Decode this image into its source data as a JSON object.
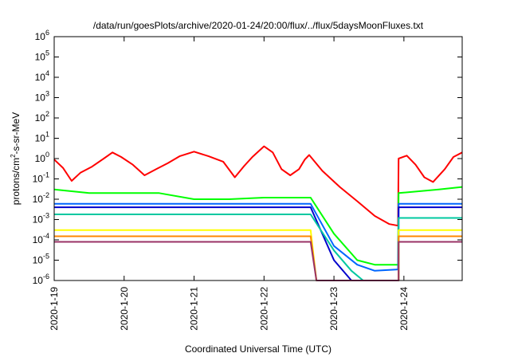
{
  "chart_data": {
    "type": "line",
    "title": "/data/run/goesPlots/archive/2020-01-24/20:00/flux/../flux/5daysMoonFluxes.txt",
    "xlabel": "Coordinated Universal Time (UTC)",
    "ylabel_parts": {
      "base": "protons/cm",
      "sup": "2",
      "rest": "-s-sr-MeV"
    },
    "y_scale": "log",
    "ylim": [
      1e-06,
      1000000.0
    ],
    "y_ticks": [
      {
        "base": "10",
        "exp": "-6",
        "value": 1e-06
      },
      {
        "base": "10",
        "exp": "-5",
        "value": 1e-05
      },
      {
        "base": "10",
        "exp": "-4",
        "value": 0.0001
      },
      {
        "base": "10",
        "exp": "-3",
        "value": 0.001
      },
      {
        "base": "10",
        "exp": "-2",
        "value": 0.01
      },
      {
        "base": "10",
        "exp": "-1",
        "value": 0.1
      },
      {
        "base": "10",
        "exp": "0",
        "value": 1
      },
      {
        "base": "10",
        "exp": "1",
        "value": 10
      },
      {
        "base": "10",
        "exp": "2",
        "value": 100
      },
      {
        "base": "10",
        "exp": "3",
        "value": 1000
      },
      {
        "base": "10",
        "exp": "4",
        "value": 10000
      },
      {
        "base": "10",
        "exp": "5",
        "value": 100000
      },
      {
        "base": "10",
        "exp": "6",
        "value": 1000000
      }
    ],
    "xlim": [
      "2020-01-19T00:00",
      "2020-01-24T20:00"
    ],
    "x_ticks": [
      "2020-1-19",
      "2020-1-20",
      "2020-1-21",
      "2020-1-22",
      "2020-1-23",
      "2020-1-24"
    ],
    "grid": false,
    "series": [
      {
        "color": "#ff0000",
        "values": [
          [
            "2020-01-19T00:00",
            0.9
          ],
          [
            "2020-01-19T03:00",
            0.35
          ],
          [
            "2020-01-19T06:00",
            0.08
          ],
          [
            "2020-01-19T09:00",
            0.2
          ],
          [
            "2020-01-19T13:00",
            0.4
          ],
          [
            "2020-01-19T17:00",
            1.0
          ],
          [
            "2020-01-19T20:00",
            2.0
          ],
          [
            "2020-01-19T23:00",
            1.2
          ],
          [
            "2020-01-20T03:00",
            0.5
          ],
          [
            "2020-01-20T07:00",
            0.15
          ],
          [
            "2020-01-20T11:00",
            0.3
          ],
          [
            "2020-01-20T15:00",
            0.6
          ],
          [
            "2020-01-20T19:00",
            1.3
          ],
          [
            "2020-01-21T00:00",
            2.2
          ],
          [
            "2020-01-21T05:00",
            1.3
          ],
          [
            "2020-01-21T10:00",
            0.7
          ],
          [
            "2020-01-21T14:00",
            0.12
          ],
          [
            "2020-01-21T17:00",
            0.4
          ],
          [
            "2020-01-21T20:00",
            1.2
          ],
          [
            "2020-01-22T00:00",
            4.0
          ],
          [
            "2020-01-22T03:00",
            2.0
          ],
          [
            "2020-01-22T06:00",
            0.3
          ],
          [
            "2020-01-22T09:00",
            0.15
          ],
          [
            "2020-01-22T12:00",
            0.3
          ],
          [
            "2020-01-22T14:00",
            0.9
          ],
          [
            "2020-01-22T15:30",
            1.5
          ],
          [
            "2020-01-22T20:00",
            0.25
          ],
          [
            "2020-01-23T02:00",
            0.04
          ],
          [
            "2020-01-23T08:00",
            0.008
          ],
          [
            "2020-01-23T14:00",
            0.0015
          ],
          [
            "2020-01-23T19:00",
            0.0006
          ],
          [
            "2020-01-23T22:00",
            0.0005
          ],
          [
            "2020-01-23T22:10",
            1.0
          ],
          [
            "2020-01-24T01:00",
            1.4
          ],
          [
            "2020-01-24T04:00",
            0.5
          ],
          [
            "2020-01-24T07:00",
            0.12
          ],
          [
            "2020-01-24T10:00",
            0.07
          ],
          [
            "2020-01-24T14:00",
            0.3
          ],
          [
            "2020-01-24T17:00",
            1.2
          ],
          [
            "2020-01-24T20:00",
            2.0
          ]
        ]
      },
      {
        "color": "#00ff00",
        "values": [
          [
            "2020-01-19T00:00",
            0.03
          ],
          [
            "2020-01-19T12:00",
            0.02
          ],
          [
            "2020-01-20T00:00",
            0.02
          ],
          [
            "2020-01-20T12:00",
            0.02
          ],
          [
            "2020-01-21T00:00",
            0.01
          ],
          [
            "2020-01-21T12:00",
            0.01
          ],
          [
            "2020-01-22T00:00",
            0.012
          ],
          [
            "2020-01-22T16:00",
            0.012
          ],
          [
            "2020-01-23T00:00",
            0.0002
          ],
          [
            "2020-01-23T08:00",
            1e-05
          ],
          [
            "2020-01-23T14:00",
            6e-06
          ],
          [
            "2020-01-23T22:00",
            6e-06
          ],
          [
            "2020-01-23T22:10",
            0.02
          ],
          [
            "2020-01-24T12:00",
            0.03
          ],
          [
            "2020-01-24T20:00",
            0.04
          ]
        ]
      },
      {
        "color": "#0066ff",
        "values": [
          [
            "2020-01-19T00:00",
            0.006
          ],
          [
            "2020-01-22T16:00",
            0.006
          ],
          [
            "2020-01-23T00:00",
            5e-05
          ],
          [
            "2020-01-23T08:00",
            6e-06
          ],
          [
            "2020-01-23T14:00",
            3e-06
          ],
          [
            "2020-01-23T22:00",
            3.5e-06
          ],
          [
            "2020-01-23T22:10",
            0.006
          ],
          [
            "2020-01-24T20:00",
            0.006
          ]
        ]
      },
      {
        "color": "#0000cc",
        "values": [
          [
            "2020-01-19T00:00",
            0.004
          ],
          [
            "2020-01-22T16:00",
            0.004
          ],
          [
            "2020-01-23T00:00",
            1e-05
          ],
          [
            "2020-01-23T06:00",
            1e-06
          ],
          [
            "2020-01-23T22:10",
            1e-06
          ],
          [
            "2020-01-23T22:10",
            0.004
          ],
          [
            "2020-01-24T20:00",
            0.004
          ]
        ]
      },
      {
        "color": "#00c8a0",
        "values": [
          [
            "2020-01-19T00:00",
            0.0018
          ],
          [
            "2020-01-22T16:00",
            0.0018
          ],
          [
            "2020-01-23T00:00",
            3e-05
          ],
          [
            "2020-01-23T06:00",
            3e-06
          ],
          [
            "2020-01-23T10:00",
            1e-06
          ],
          [
            "2020-01-23T22:10",
            1e-06
          ],
          [
            "2020-01-23T22:10",
            0.0012
          ],
          [
            "2020-01-24T20:00",
            0.0012
          ]
        ]
      },
      {
        "color": "#ffff00",
        "values": [
          [
            "2020-01-19T00:00",
            0.0003
          ],
          [
            "2020-01-22T16:00",
            0.0003
          ],
          [
            "2020-01-22T18:00",
            1e-06
          ],
          [
            "2020-01-23T22:10",
            1e-06
          ],
          [
            "2020-01-23T22:10",
            0.0003
          ],
          [
            "2020-01-24T20:00",
            0.0003
          ]
        ]
      },
      {
        "color": "#ff8800",
        "values": [
          [
            "2020-01-19T00:00",
            0.00015
          ],
          [
            "2020-01-22T16:00",
            0.00015
          ],
          [
            "2020-01-22T18:00",
            1e-06
          ],
          [
            "2020-01-23T22:10",
            1e-06
          ],
          [
            "2020-01-23T22:10",
            0.00015
          ],
          [
            "2020-01-24T20:00",
            0.00015
          ]
        ]
      },
      {
        "color": "#993366",
        "values": [
          [
            "2020-01-19T00:00",
            8e-05
          ],
          [
            "2020-01-22T16:00",
            8e-05
          ],
          [
            "2020-01-22T18:00",
            1e-06
          ],
          [
            "2020-01-23T22:10",
            1e-06
          ],
          [
            "2020-01-23T22:10",
            8e-05
          ],
          [
            "2020-01-24T20:00",
            8e-05
          ]
        ]
      }
    ]
  }
}
